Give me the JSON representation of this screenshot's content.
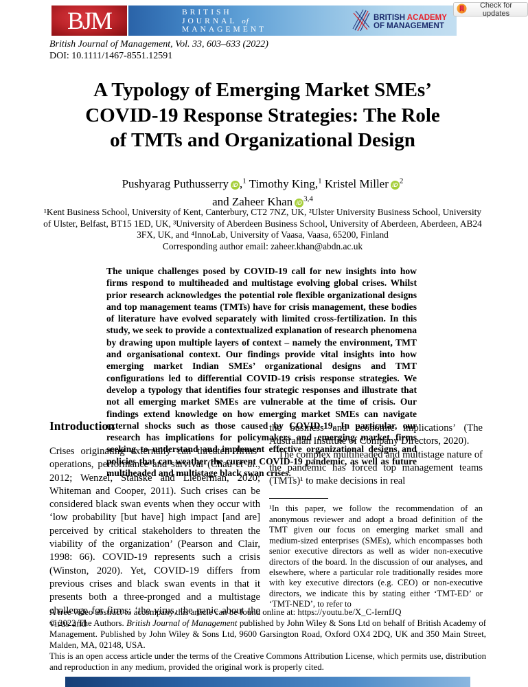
{
  "colors": {
    "bjm_red": "#b01218",
    "banner_blue": "#3f7fc0",
    "bam_navy": "#1b2a6b",
    "bam_red": "#e8212a",
    "orcid_green": "#a6ce39"
  },
  "header": {
    "check_updates_label": "Check for updates",
    "bjm_logo_text": "BJM",
    "journal_banner": {
      "l1": "BRITISH",
      "l2a": "JOURNAL",
      "l2b": "of",
      "l3": "MANAGEMENT"
    },
    "bam_logo": {
      "l1a": "BRITISH ",
      "l1b": "ACADEMY",
      "l2": "OF MANAGEMENT"
    }
  },
  "citation": {
    "journal_line": "British Journal of Management, Vol. 33, 603–633 (2022)",
    "doi_line": "DOI: 10.1111/1467-8551.12591"
  },
  "title": {
    "lines": [
      "A Typology of Emerging Market SMEs’",
      "COVID-19 Response Strategies: The Role",
      "of TMTs and Organizational Design"
    ]
  },
  "authors": {
    "a1": {
      "name": "Pushyarag Puthusserry",
      "sep": ",",
      "sup": "1"
    },
    "a2": {
      "name": "Timothy King",
      "sep": ",",
      "sup": "1"
    },
    "a3": {
      "name": "Kristel Miller",
      "sep": "",
      "sup": "2"
    },
    "a4": {
      "name": "and Zaheer Khan",
      "sep": "",
      "sup": "3,4"
    },
    "orcid_label": "iD"
  },
  "affiliations": {
    "line": "¹Kent Business School, University of Kent, Canterbury, CT2 7NZ, UK, ²Ulster University Business School, University of Ulster, Belfast, BT15 1ED, UK, ³University of Aberdeen Business School, University of Aberdeen, Aberdeen, AB24 3FX, UK, and ⁴InnoLab, University of Vaasa, Vaasa, 65200, Finland",
    "corresponding": "Corresponding author email: zaheer.khan@abdn.ac.uk"
  },
  "abstract": {
    "text": "The unique challenges posed by COVID-19 call for new insights into how firms respond to multiheaded and multistage evolving global crises. Whilst prior research acknowledges the potential role flexible organizational designs and top management teams (TMTs) have for crisis management, these bodies of literature have evolved separately with limited cross-fertilization. In this study, we seek to provide a contextualized explanation of research phenomena by drawing upon multiple layers of context – namely the environment, TMT and organisational context. Our findings provide vital insights into how emerging market Indian SMEs’ organizational designs and TMT configurations led to differential COVID-19 crisis response strategies. We develop a typology that identifies four strategic responses and illustrate that not all emerging market SMEs are vulnerable at the time of crisis. Our findings extend knowledge on how emerging market SMEs can navigate external shocks such as those caused by COVID-19. In particular, our research has implications for policymakers and emerging market firms seeking to understand and implement effective organizational designs and policies that can weather the current COVID-19 pandemic, as well as future multiheaded and multistage black swan crises."
  },
  "main": {
    "intro_heading": "Introduction",
    "left_paragraph": [
      {
        "t": "Crises originating externally can threaten firms’ operations, performance and survival (Chau "
      },
      {
        "t": "et al",
        "i": true
      },
      {
        "t": "., 2012; Wenzel, Stanske and Lieberman, 2020; Whiteman and Cooper, 2011). Such crises can be considered black swan events when they occur with ‘low probability [but have] high impact [and are] perceived by critical stakeholders to threaten the viability of the organization’ (Pearson and Clair, 1998: 66). COVID-19 represents such a crisis (Winston, 2020). Yet, COVID-19 differs from previous crises and black swan events in that it presents both a three-pronged and a multistage challenge for firms: ‘the virus, the panic about the virus and"
      }
    ],
    "right_paragraph_1": "the business and economic implications’ (The Australian Institute of Company Directors, 2020).",
    "right_paragraph_2": "The complex multiheaded and multistage nature of the pandemic has forced top management teams (TMTs)¹ to make decisions in real",
    "footnote": "¹In this paper, we follow the recommendation of an anonymous reviewer and adopt a broad definition of the TMT given our focus on emerging market small and medium-sized enterprises (SMEs), which encompasses both senior executive directors as well as wider non-executive directors of the board. In the discussion of our analyses, and elsewhere, where a particular role traditionally resides more with key executive directors (e.g. CEO) or non-executive directors, we indicate this by stating either ‘TMT-ED’ or ‘TMT-NED’, to refer to"
  },
  "footer": {
    "video_line": "A free video abstract to accompany this article can be found online at: https://youtu.be/X_C-IernfJQ",
    "copyright_segments": [
      {
        "t": "© 2022 The Authors. "
      },
      {
        "t": "British Journal of Management",
        "i": true
      },
      {
        "t": " published by John Wiley & Sons Ltd on behalf of British Academy of Management. Published by John Wiley & Sons Ltd, 9600 Garsington Road, Oxford OX4 2DQ, UK and 350 Main Street, Malden, MA, 02148, USA."
      }
    ],
    "license_line": "This is an open access article under the terms of the Creative Commons Attribution License, which permits use, distribution and reproduction in any medium, provided the original work is properly cited."
  }
}
